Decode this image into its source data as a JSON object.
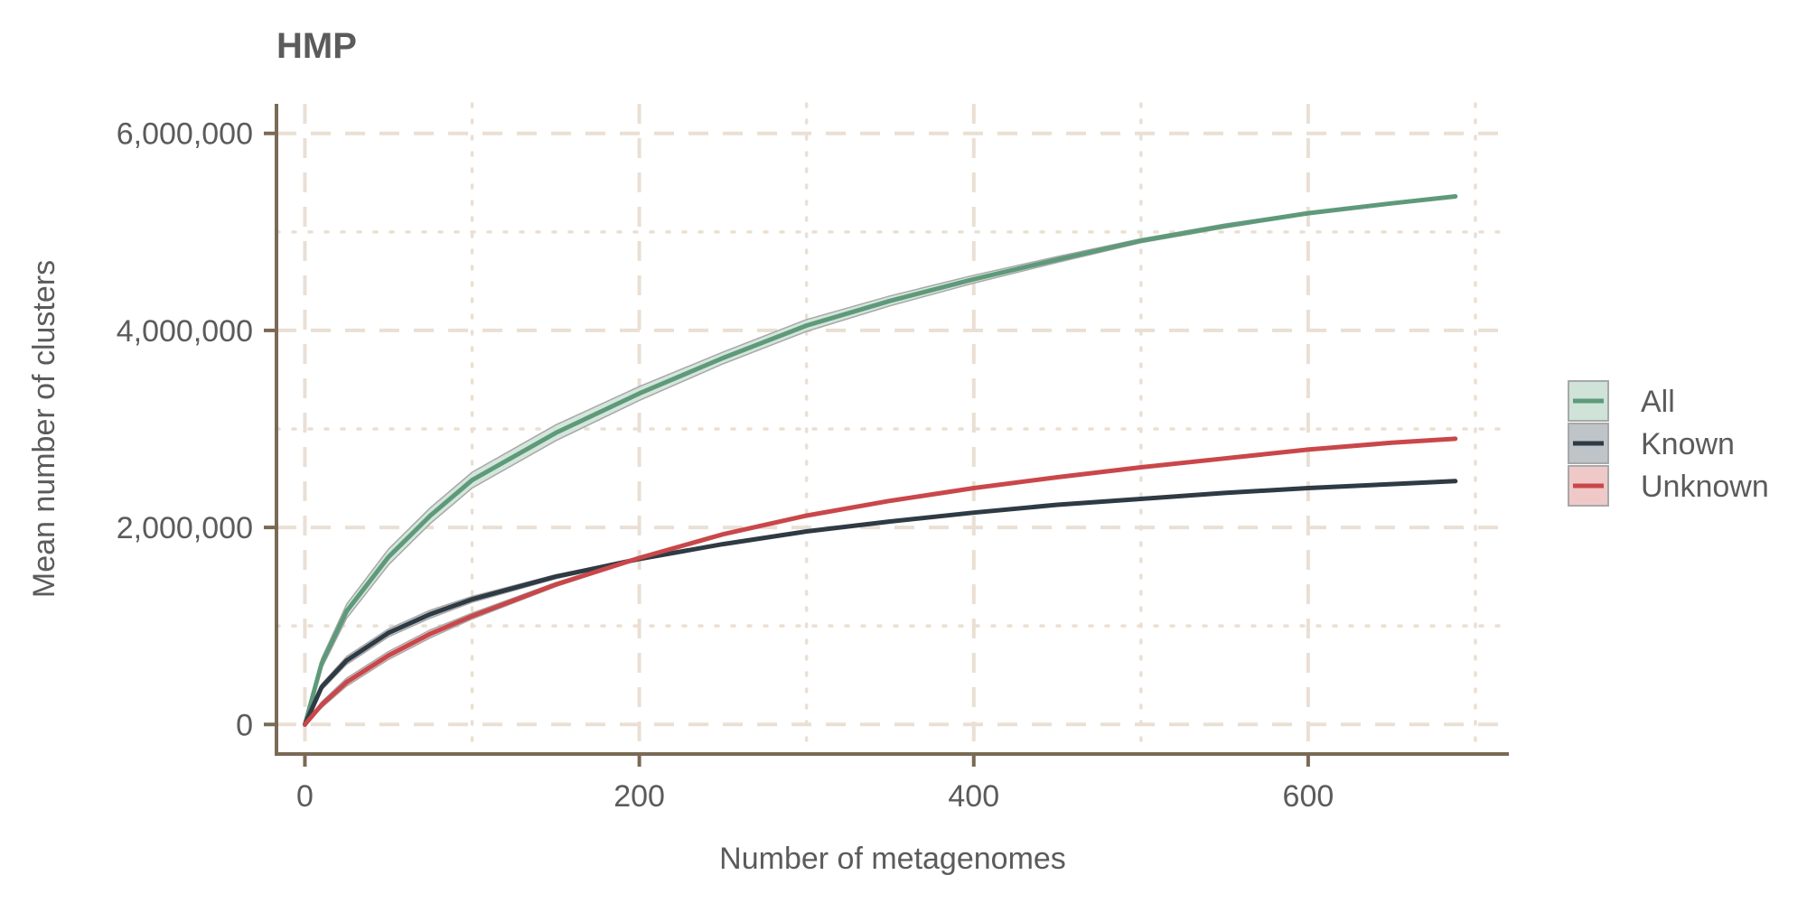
{
  "chart_data": {
    "type": "line",
    "title": "HMP",
    "xlabel": "Number of metagenomes",
    "ylabel": "Mean number of clusters",
    "xlim": [
      -17,
      720
    ],
    "ylim": [
      -300000,
      6300000
    ],
    "x_ticks": [
      0,
      200,
      400,
      600
    ],
    "x_tick_labels": [
      "0",
      "200",
      "400",
      "600"
    ],
    "y_ticks": [
      0,
      2000000,
      4000000,
      6000000
    ],
    "y_tick_labels": [
      "0",
      "2,000,000",
      "4,000,000",
      "6,000,000"
    ],
    "x_minor_grid": [
      100,
      300,
      500,
      700
    ],
    "y_minor_grid": [
      1000000,
      3000000,
      5000000
    ],
    "grid": true,
    "legend_position": "right",
    "colors": {
      "axis": "#7a6a55",
      "grid": "#eadfd4",
      "band_stroke": "#a8a8a8",
      "text": "#5b5b5b"
    },
    "x": [
      0,
      10,
      25,
      50,
      75,
      100,
      150,
      200,
      250,
      300,
      350,
      400,
      450,
      500,
      550,
      600,
      650,
      688
    ],
    "series": [
      {
        "name": "All",
        "color": "#5e9a7a",
        "band_color": "#cfe3d8",
        "values": [
          0,
          620000,
          1150000,
          1700000,
          2120000,
          2480000,
          2960000,
          3360000,
          3720000,
          4050000,
          4300000,
          4520000,
          4720000,
          4910000,
          5060000,
          5190000,
          5290000,
          5360000
        ],
        "band_lower": [
          0,
          570000,
          1080000,
          1620000,
          2040000,
          2400000,
          2880000,
          3290000,
          3660000,
          3990000,
          4250000,
          4480000,
          4690000,
          4890000,
          5040000,
          5180000,
          5280000,
          5350000
        ],
        "band_upper": [
          0,
          670000,
          1220000,
          1780000,
          2200000,
          2560000,
          3040000,
          3430000,
          3780000,
          4110000,
          4350000,
          4560000,
          4750000,
          4930000,
          5080000,
          5200000,
          5300000,
          5370000
        ]
      },
      {
        "name": "Known",
        "color": "#2e3a44",
        "band_color": "#bfc4c8",
        "values": [
          0,
          380000,
          650000,
          930000,
          1120000,
          1270000,
          1500000,
          1680000,
          1830000,
          1960000,
          2060000,
          2150000,
          2230000,
          2290000,
          2350000,
          2400000,
          2440000,
          2470000
        ],
        "band_lower": [
          0,
          350000,
          610000,
          890000,
          1080000,
          1240000,
          1480000,
          1670000,
          1820000,
          1950000,
          2050000,
          2140000,
          2220000,
          2285000,
          2345000,
          2395000,
          2435000,
          2465000
        ],
        "band_upper": [
          0,
          410000,
          690000,
          970000,
          1160000,
          1300000,
          1520000,
          1690000,
          1840000,
          1970000,
          2070000,
          2160000,
          2240000,
          2295000,
          2355000,
          2405000,
          2445000,
          2475000
        ]
      },
      {
        "name": "Unknown",
        "color": "#c9474a",
        "band_color": "#efc9c8",
        "values": [
          0,
          200000,
          430000,
          700000,
          920000,
          1100000,
          1420000,
          1690000,
          1930000,
          2120000,
          2270000,
          2400000,
          2510000,
          2610000,
          2700000,
          2790000,
          2860000,
          2900000
        ],
        "band_lower": [
          0,
          170000,
          390000,
          660000,
          880000,
          1070000,
          1400000,
          1680000,
          1920000,
          2110000,
          2260000,
          2390000,
          2505000,
          2605000,
          2695000,
          2785000,
          2855000,
          2895000
        ],
        "band_upper": [
          0,
          230000,
          470000,
          740000,
          960000,
          1130000,
          1440000,
          1700000,
          1940000,
          2130000,
          2280000,
          2410000,
          2515000,
          2615000,
          2705000,
          2795000,
          2865000,
          2905000
        ]
      }
    ]
  }
}
